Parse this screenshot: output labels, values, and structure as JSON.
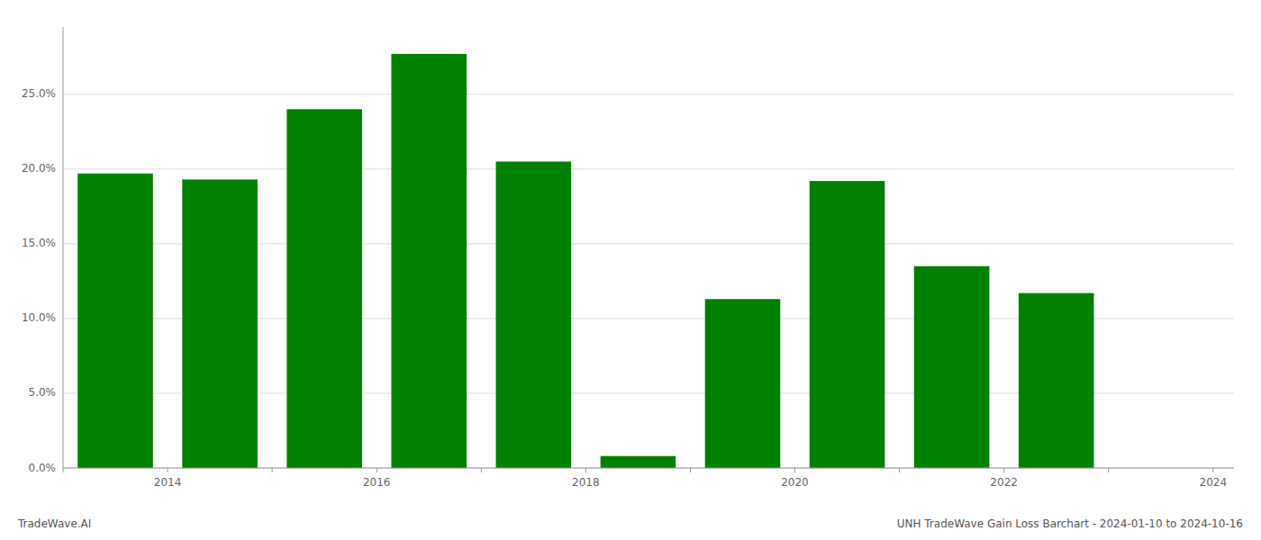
{
  "chart_data": {
    "type": "bar",
    "x": [
      2013.5,
      2014.5,
      2015.5,
      2016.5,
      2017.5,
      2018.5,
      2019.5,
      2020.5,
      2021.5,
      2022.5
    ],
    "values": [
      0.197,
      0.193,
      0.24,
      0.277,
      0.205,
      0.008,
      0.113,
      0.192,
      0.135,
      0.117
    ],
    "color": "#008000",
    "xlim": [
      2013.0,
      2024.2
    ],
    "xticks": [
      {
        "value": 2013,
        "label": null
      },
      2014,
      {
        "value": 2015,
        "label": null
      },
      2016,
      {
        "value": 2017,
        "label": null
      },
      2018,
      {
        "value": 2019,
        "label": null
      },
      2020,
      {
        "value": 2021,
        "label": null
      },
      2022,
      {
        "value": 2023,
        "label": null
      },
      2024
    ],
    "ylim": [
      0,
      0.295
    ],
    "yticks": [
      {
        "value": 0.0,
        "label": "0.0%"
      },
      {
        "value": 0.05,
        "label": "5.0%"
      },
      {
        "value": 0.1,
        "label": "10.0%"
      },
      {
        "value": 0.15,
        "label": "15.0%"
      },
      {
        "value": 0.2,
        "label": "20.0%"
      },
      {
        "value": 0.25,
        "label": "25.0%"
      }
    ],
    "grid": true,
    "annotations": [
      "TradeWave.AI",
      "UNH TradeWave Gain Loss Barchart - 2024-01-10 to 2024-10-16"
    ]
  }
}
